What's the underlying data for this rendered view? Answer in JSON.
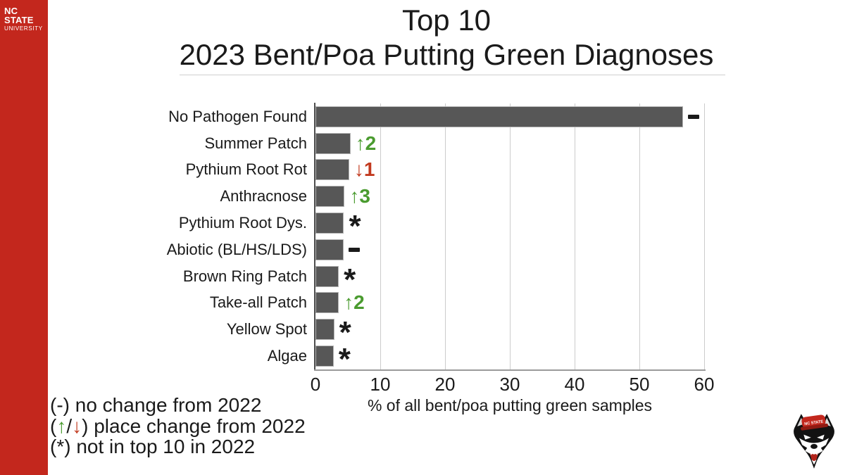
{
  "brand": {
    "name_line1": "NC STATE",
    "name_line2": "UNIVERSITY"
  },
  "title": {
    "line1": "Top 10",
    "line2": "2023 Bent/Poa Putting Green Diagnoses"
  },
  "chart_data": {
    "type": "bar",
    "orientation": "horizontal",
    "title": "Top 10 2023 Bent/Poa Putting Green Diagnoses",
    "xlabel": "% of all bent/poa putting green samples",
    "xlim": [
      0,
      60
    ],
    "xticks": [
      0,
      10,
      20,
      30,
      40,
      50,
      60
    ],
    "grid": true,
    "bar_color": "#575757",
    "categories": [
      "No Pathogen Found",
      "Summer Patch",
      "Pythium Root Rot",
      "Anthracnose",
      "Pythium Root Dys.",
      "Abiotic (BL/HS/LDS)",
      "Brown Ring Patch",
      "Take-all Patch",
      "Yellow Spot",
      "Algae"
    ],
    "values": [
      56.7,
      5.4,
      5.2,
      4.5,
      4.4,
      4.3,
      3.6,
      3.6,
      2.9,
      2.8
    ],
    "annotations": [
      {
        "symbol": "-",
        "color": "black"
      },
      {
        "symbol": "↑2",
        "color": "green"
      },
      {
        "symbol": "↓1",
        "color": "red"
      },
      {
        "symbol": "↑3",
        "color": "green"
      },
      {
        "symbol": "*",
        "color": "black"
      },
      {
        "symbol": "-",
        "color": "black"
      },
      {
        "symbol": "*",
        "color": "black"
      },
      {
        "symbol": "↑2",
        "color": "green"
      },
      {
        "symbol": "*",
        "color": "black"
      },
      {
        "symbol": "*",
        "color": "black"
      }
    ]
  },
  "legend": {
    "line1": "(-) no change from 2022",
    "line2_open": "(",
    "line2_up": "↑",
    "line2_slash": "/",
    "line2_down": "↓",
    "line2_rest": ") place change from 2022",
    "line3": "(*) not in top 10 in 2022"
  },
  "colors": {
    "brand_red": "#c3271d",
    "bar_gray": "#575757",
    "up_green": "#4a9b2f",
    "down_red": "#c23a1f",
    "annotation_black": "#1a1a1a",
    "gridline_gray": "#cccccc"
  },
  "logo_wolf_hat_text": "NC STATE"
}
